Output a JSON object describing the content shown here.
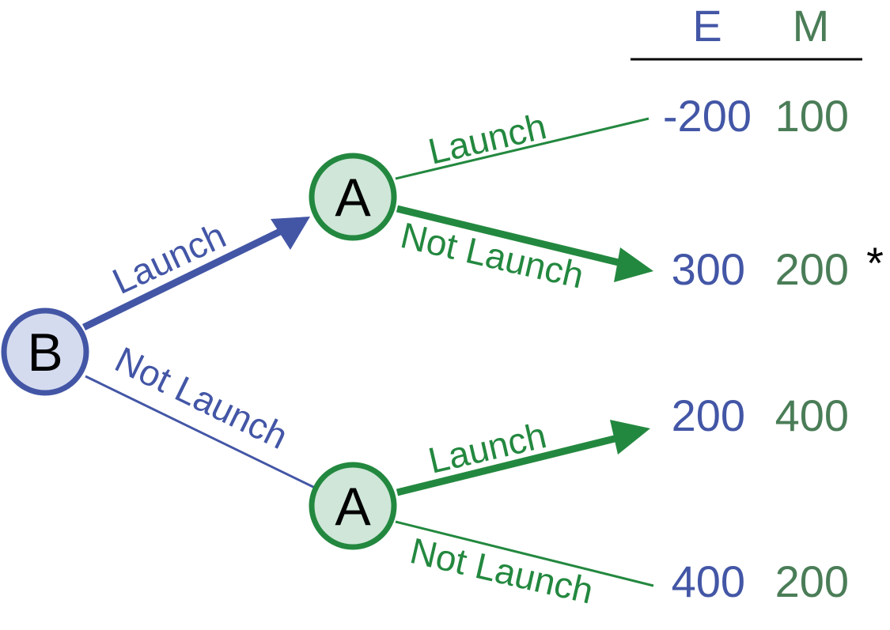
{
  "colors": {
    "player_b": "#4356a6",
    "player_a": "#23883f",
    "node_b_fill": "#d5dbef",
    "node_a_fill": "#cfe6d8",
    "payoff_e": "#4356a6",
    "payoff_m": "#4a7d57",
    "text": "#000000"
  },
  "headers": {
    "e": "E",
    "m": "M"
  },
  "nodes": {
    "root": "B",
    "upper": "A",
    "lower": "A"
  },
  "branches": {
    "b_launch": "Launch",
    "b_not_launch": "Not Launch",
    "upper_launch": "Launch",
    "upper_not_launch": "Not Launch",
    "lower_launch": "Launch",
    "lower_not_launch": "Not Launch"
  },
  "payoffs": [
    {
      "e": "-200",
      "m": "100",
      "mark": ""
    },
    {
      "e": "300",
      "m": "200",
      "mark": "*"
    },
    {
      "e": "200",
      "m": "400",
      "mark": ""
    },
    {
      "e": "400",
      "m": "200",
      "mark": ""
    }
  ]
}
